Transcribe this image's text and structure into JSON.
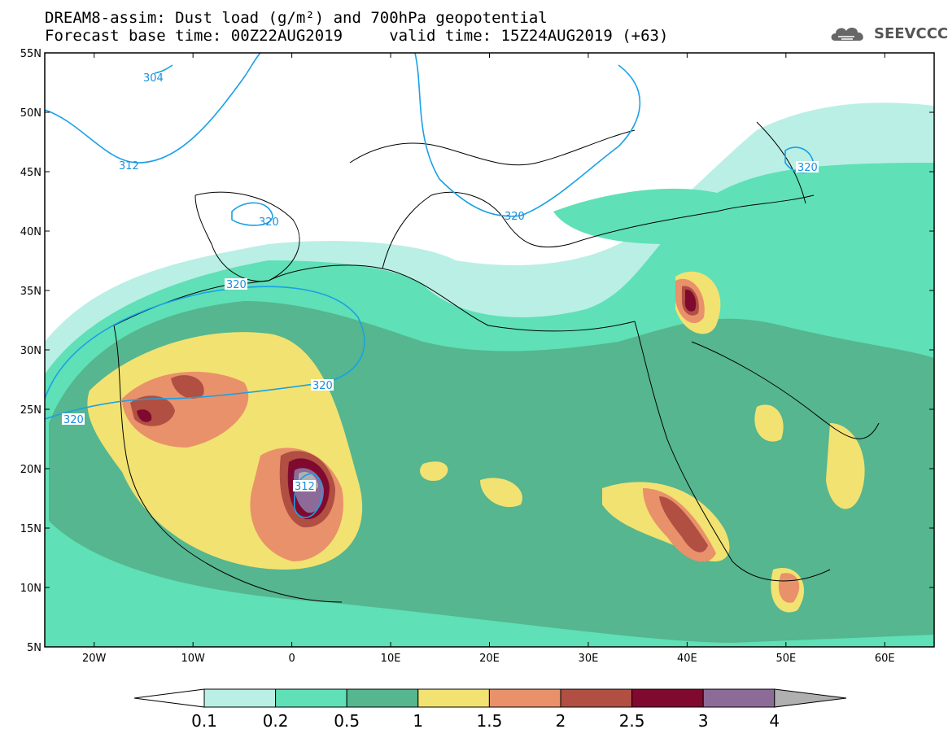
{
  "title": {
    "line1": "DREAM8-assim: Dust load (g/m²) and 700hPa geopotential",
    "line2": "Forecast base time: 00Z22AUG2019     valid time: 15Z24AUG2019 (+63)"
  },
  "logo": {
    "text": "SEEVCCC"
  },
  "axes": {
    "lon_range": [
      -25,
      65
    ],
    "lat_range": [
      5,
      55
    ],
    "lon_ticks": [
      "20W",
      "10W",
      "0",
      "10E",
      "20E",
      "30E",
      "40E",
      "50E",
      "60E"
    ],
    "lat_ticks": [
      "55N",
      "50N",
      "45N",
      "40N",
      "35N",
      "30N",
      "25N",
      "20N",
      "15N",
      "10N",
      "5N"
    ]
  },
  "contour_labels": [
    "304",
    "312",
    "320",
    "320",
    "320",
    "320",
    "320",
    "320",
    "312"
  ],
  "colorbar": {
    "labels": [
      "0.1",
      "0.2",
      "0.5",
      "1",
      "1.5",
      "2",
      "2.5",
      "3",
      "4"
    ],
    "colors": [
      "#b9efe5",
      "#5fe0b6",
      "#55b68f",
      "#f2e271",
      "#e9916a",
      "#b04f42",
      "#800a2f",
      "#8c6b99",
      "#b0b0b0"
    ]
  }
}
